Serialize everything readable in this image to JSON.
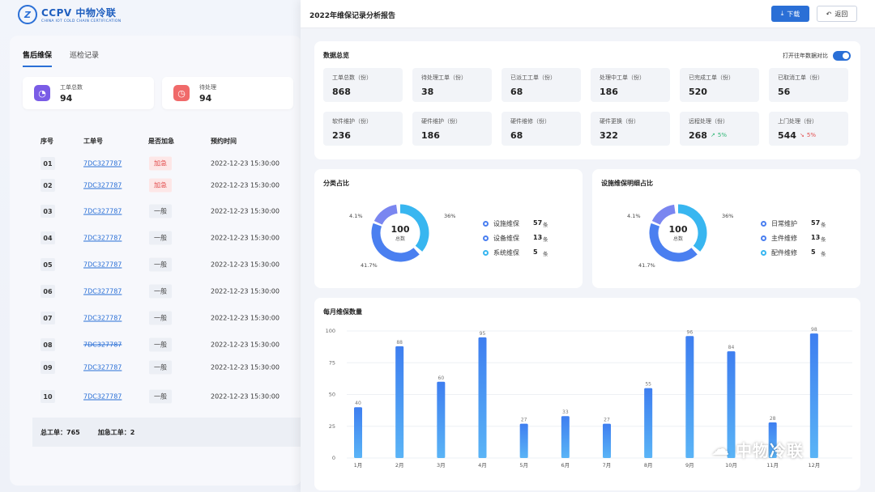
{
  "brand": {
    "mark": "Z",
    "title": "CCPV 中物冷联",
    "subtitle": "CHINA IOT COLD CHAIN CERTIFICATION"
  },
  "tabs": [
    {
      "label": "售后维保",
      "active": true
    },
    {
      "label": "巡检记录",
      "active": false
    }
  ],
  "stats": [
    {
      "label": "工单总数",
      "value": "94",
      "icon": "pie-chart-icon",
      "color": "#7a5ce6"
    },
    {
      "label": "待处理",
      "value": "94",
      "icon": "clock-icon",
      "color": "#f06a6a"
    }
  ],
  "table": {
    "headers": [
      "序号",
      "工单号",
      "是否加急",
      "预约时间"
    ],
    "rows": [
      {
        "idx": "01",
        "id": "7DC327787",
        "tag": "加急",
        "urgent": true,
        "time": "2022-12-23 15:30:00"
      },
      {
        "idx": "02",
        "id": "7DC327787",
        "tag": "加急",
        "urgent": true,
        "time": "2022-12-23 15:30:00"
      },
      {
        "idx": "03",
        "id": "7DC327787",
        "tag": "一般",
        "urgent": false,
        "time": "2022-12-23 15:30:00"
      },
      {
        "idx": "04",
        "id": "7DC327787",
        "tag": "一般",
        "urgent": false,
        "time": "2022-12-23 15:30:00"
      },
      {
        "idx": "05",
        "id": "7DC327787",
        "tag": "一般",
        "urgent": false,
        "time": "2022-12-23 15:30:00"
      },
      {
        "idx": "06",
        "id": "7DC327787",
        "tag": "一般",
        "urgent": false,
        "time": "2022-12-23 15:30:00"
      },
      {
        "idx": "07",
        "id": "7DC327787",
        "tag": "一般",
        "urgent": false,
        "time": "2022-12-23 15:30:00"
      },
      {
        "idx": "08",
        "id": "7DC327787",
        "tag": "一般",
        "urgent": false,
        "time": "2022-12-23 15:30:00"
      },
      {
        "idx": "09",
        "id": "7DC327787",
        "tag": "一般",
        "urgent": false,
        "time": "2022-12-23 15:30:00"
      },
      {
        "idx": "10",
        "id": "7DC327787",
        "tag": "一般",
        "urgent": false,
        "time": "2022-12-23 15:30:00"
      }
    ],
    "footer": {
      "total": "总工单：765",
      "urgent": "加急工单：2"
    }
  },
  "panel": {
    "title": "2022年维保记录分析报告",
    "download_label": "下载",
    "back_label": "返回"
  },
  "overview": {
    "title": "数据总览",
    "compare_label": "打开往年数据对比",
    "compare_on": true,
    "metrics": [
      {
        "label": "工单总数（份）",
        "value": "868"
      },
      {
        "label": "待处理工单（份）",
        "value": "38"
      },
      {
        "label": "已派工工单（份）",
        "value": "68"
      },
      {
        "label": "处理中工单（份）",
        "value": "186"
      },
      {
        "label": "已完成工单（份）",
        "value": "520"
      },
      {
        "label": "已取消工单（份）",
        "value": "56"
      },
      {
        "label": "软件维护（份）",
        "value": "236"
      },
      {
        "label": "硬件维护（份）",
        "value": "186"
      },
      {
        "label": "硬件维修（份）",
        "value": "68"
      },
      {
        "label": "硬件更换（份）",
        "value": "322"
      },
      {
        "label": "远程处理（份）",
        "value": "268",
        "trend": "5%",
        "trend_dir": "up"
      },
      {
        "label": "上门处理（份）",
        "value": "544",
        "trend": "5%",
        "trend_dir": "down"
      }
    ]
  },
  "pies": [
    {
      "title": "分类占比",
      "center_value": "100",
      "center_label": "总数",
      "labels": [
        "36%",
        "4.1%",
        "41.7%"
      ],
      "legend": [
        {
          "name": "设施维保",
          "value": "57",
          "unit": "条"
        },
        {
          "name": "设备维保",
          "value": "13",
          "unit": "条"
        },
        {
          "name": "系统维保",
          "value": "5",
          "unit": "条"
        }
      ]
    },
    {
      "title": "设施维保明细占比",
      "center_value": "100",
      "center_label": "总数",
      "labels": [
        "36%",
        "4.1%",
        "41.7%"
      ],
      "legend": [
        {
          "name": "日常维护",
          "value": "57",
          "unit": "条"
        },
        {
          "name": "主件维修",
          "value": "13",
          "unit": "条"
        },
        {
          "name": "配件维修",
          "value": "5",
          "unit": "条"
        }
      ]
    }
  ],
  "donut_colors": [
    "#38b6f0",
    "#4a7ff0",
    "#7a86f0"
  ],
  "chart_data": {
    "type": "bar",
    "title": "每月维保数量",
    "categories": [
      "1月",
      "2月",
      "3月",
      "4月",
      "5月",
      "6月",
      "7月",
      "8月",
      "9月",
      "10月",
      "11月",
      "12月"
    ],
    "values": [
      40,
      88,
      60,
      95,
      27,
      33,
      27,
      55,
      96,
      84,
      28,
      98
    ],
    "yticks": [
      0,
      25,
      50,
      75,
      100
    ],
    "ylim": [
      0,
      100
    ],
    "grid": true,
    "bar_color": "#3d86f0"
  },
  "watermark": {
    "text": "中物冷联",
    "icon": "wechat-icon"
  }
}
